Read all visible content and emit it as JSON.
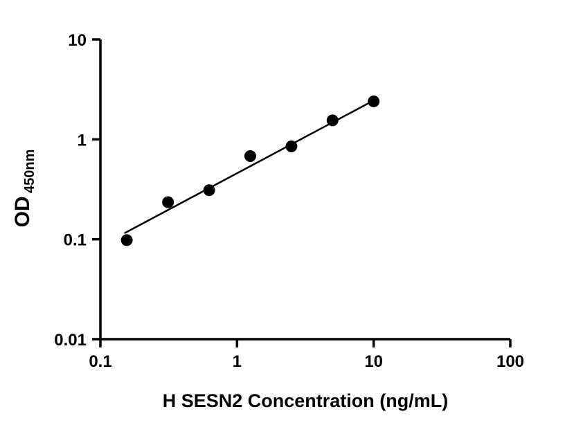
{
  "chart_data": {
    "type": "scatter",
    "title": "",
    "xlabel": "H SESN2 Concentration (ng/mL)",
    "ylabel_main": "OD",
    "ylabel_sub": "450nm",
    "x_scale": "log",
    "y_scale": "log",
    "xlim": [
      0.1,
      100
    ],
    "ylim": [
      0.01,
      10
    ],
    "grid": false,
    "legend": "none",
    "x_ticks": [
      {
        "value": 0.1,
        "label": "0.1"
      },
      {
        "value": 1,
        "label": "1"
      },
      {
        "value": 10,
        "label": "10"
      },
      {
        "value": 100,
        "label": "100"
      }
    ],
    "y_ticks": [
      {
        "value": 0.01,
        "label": "0.01"
      },
      {
        "value": 0.1,
        "label": "0.1"
      },
      {
        "value": 1,
        "label": "1"
      },
      {
        "value": 10,
        "label": "10"
      }
    ],
    "points": [
      {
        "x": 0.156,
        "y": 0.098
      },
      {
        "x": 0.3125,
        "y": 0.235
      },
      {
        "x": 0.625,
        "y": 0.31
      },
      {
        "x": 1.25,
        "y": 0.68
      },
      {
        "x": 2.5,
        "y": 0.85
      },
      {
        "x": 5,
        "y": 1.55
      },
      {
        "x": 10,
        "y": 2.4
      }
    ],
    "trend_line": {
      "x1": 0.15,
      "y1": 0.115,
      "x2": 10,
      "y2": 2.45
    },
    "colors": {
      "point": "#000000",
      "line": "#000000",
      "axis": "#000000",
      "background": "#ffffff"
    }
  }
}
